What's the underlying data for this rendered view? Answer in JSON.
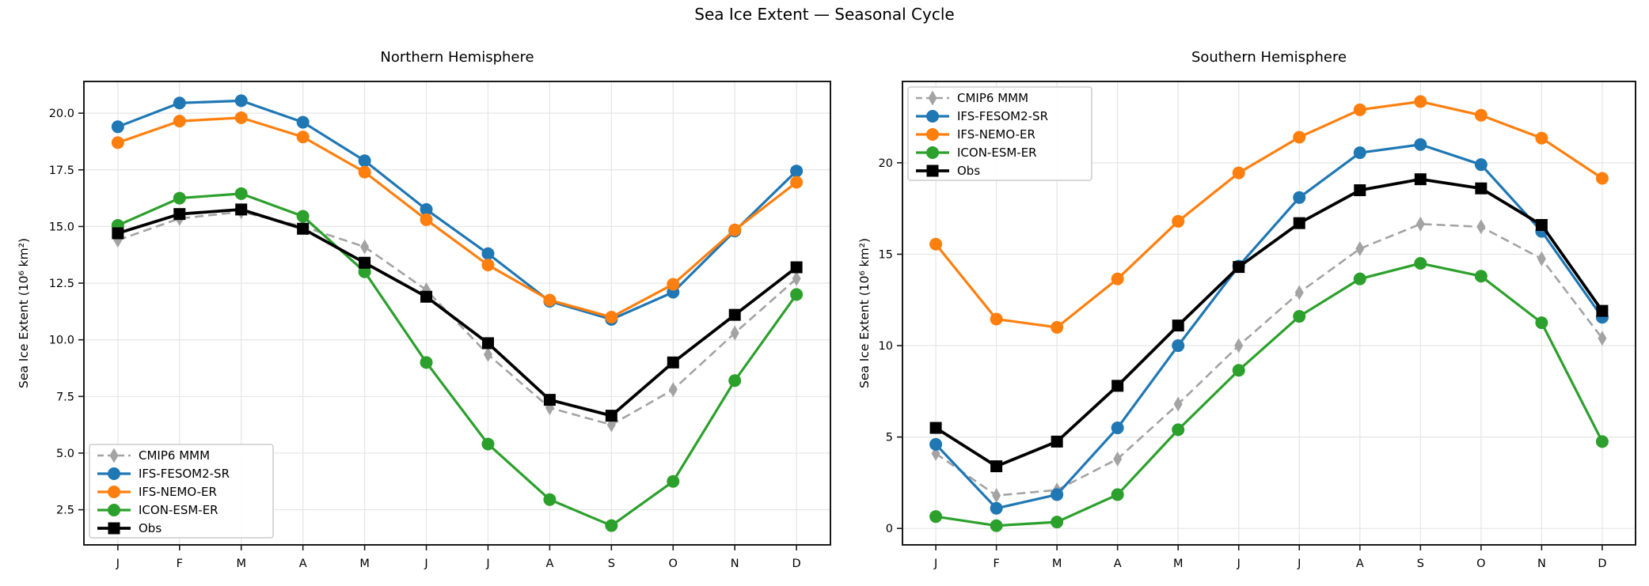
{
  "figure": {
    "suptitle": "Sea Ice Extent — Seasonal Cycle",
    "background": "#ffffff",
    "text_color": "#000000",
    "grid_color": "#e5e5e5",
    "spine_color": "#1a1a1a",
    "legend_border_color": "#cccccc",
    "legend_background": "#ffffff"
  },
  "chart_data": [
    {
      "id": "northern-hemisphere",
      "type": "line",
      "title": "Northern Hemisphere",
      "ylabel": "Sea Ice Extent (10⁶ km²)",
      "xlabel": "",
      "categories": [
        "J",
        "F",
        "M",
        "A",
        "M",
        "J",
        "J",
        "A",
        "S",
        "O",
        "N",
        "D"
      ],
      "xlim": [
        -0.55,
        11.55
      ],
      "ylim": [
        0.95,
        21.4
      ],
      "yticks": [
        2.5,
        5.0,
        7.5,
        10.0,
        12.5,
        15.0,
        17.5,
        20.0
      ],
      "ytick_labels": [
        "2.5",
        "5.0",
        "7.5",
        "10.0",
        "12.5",
        "15.0",
        "17.5",
        "20.0"
      ],
      "grid": true,
      "legend_loc": "lower-left",
      "legend_labels": [
        "CMIP6 MMM",
        "IFS-FESOM2-SR",
        "IFS-NEMO-ER",
        "ICON-ESM-ER",
        "Obs"
      ],
      "series": [
        {
          "name": "CMIP6 MMM",
          "color": "#a3a3a3",
          "dash": "dashed",
          "marker": "thin-diamond",
          "values": [
            14.4,
            15.35,
            15.65,
            15.0,
            14.1,
            12.2,
            9.35,
            7.0,
            6.25,
            7.8,
            10.3,
            12.7
          ]
        },
        {
          "name": "IFS-FESOM2-SR",
          "color": "#1f77b4",
          "dash": "solid",
          "marker": "circle",
          "values": [
            19.4,
            20.45,
            20.55,
            19.6,
            17.9,
            15.75,
            13.8,
            11.7,
            10.9,
            12.1,
            14.8,
            17.45
          ]
        },
        {
          "name": "IFS-NEMO-ER",
          "color": "#ff7f0e",
          "dash": "solid",
          "marker": "circle",
          "values": [
            18.7,
            19.65,
            19.8,
            18.95,
            17.4,
            15.3,
            13.3,
            11.75,
            11.0,
            12.45,
            14.85,
            16.95
          ]
        },
        {
          "name": "ICON-ESM-ER",
          "color": "#2ca02c",
          "dash": "solid",
          "marker": "circle",
          "values": [
            15.05,
            16.25,
            16.45,
            15.45,
            13.0,
            9.0,
            5.4,
            2.95,
            1.8,
            3.75,
            8.2,
            12.0
          ]
        },
        {
          "name": "Obs",
          "color": "#000000",
          "dash": "solid",
          "marker": "square",
          "values": [
            14.7,
            15.55,
            15.75,
            14.9,
            13.4,
            11.9,
            9.85,
            7.35,
            6.65,
            9.0,
            11.1,
            13.2
          ]
        }
      ]
    },
    {
      "id": "southern-hemisphere",
      "type": "line",
      "title": "Southern Hemisphere",
      "ylabel": "Sea Ice Extent (10⁶ km²)",
      "xlabel": "",
      "categories": [
        "J",
        "F",
        "M",
        "A",
        "M",
        "J",
        "J",
        "A",
        "S",
        "O",
        "N",
        "D"
      ],
      "xlim": [
        -0.55,
        11.55
      ],
      "ylim": [
        -0.9,
        24.45
      ],
      "yticks": [
        0,
        5,
        10,
        15,
        20
      ],
      "ytick_labels": [
        "0",
        "5",
        "10",
        "15",
        "20"
      ],
      "grid": true,
      "legend_loc": "upper-left",
      "legend_labels": [
        "CMIP6 MMM",
        "IFS-FESOM2-SR",
        "IFS-NEMO-ER",
        "ICON-ESM-ER",
        "Obs"
      ],
      "series": [
        {
          "name": "CMIP6 MMM",
          "color": "#a3a3a3",
          "dash": "dashed",
          "marker": "thin-diamond",
          "values": [
            4.1,
            1.8,
            2.1,
            3.8,
            6.8,
            10.0,
            12.9,
            15.3,
            16.65,
            16.5,
            14.75,
            10.4
          ]
        },
        {
          "name": "IFS-FESOM2-SR",
          "color": "#1f77b4",
          "dash": "solid",
          "marker": "circle",
          "values": [
            4.6,
            1.1,
            1.85,
            5.5,
            10.0,
            14.35,
            18.1,
            20.55,
            21.0,
            19.9,
            16.25,
            11.55
          ]
        },
        {
          "name": "IFS-NEMO-ER",
          "color": "#ff7f0e",
          "dash": "solid",
          "marker": "circle",
          "values": [
            15.55,
            11.45,
            11.0,
            13.65,
            16.8,
            19.45,
            21.4,
            22.9,
            23.35,
            22.6,
            21.35,
            19.15
          ]
        },
        {
          "name": "ICON-ESM-ER",
          "color": "#2ca02c",
          "dash": "solid",
          "marker": "circle",
          "values": [
            0.65,
            0.15,
            0.35,
            1.85,
            5.4,
            8.65,
            11.6,
            13.65,
            14.5,
            13.8,
            11.25,
            4.75
          ]
        },
        {
          "name": "Obs",
          "color": "#000000",
          "dash": "solid",
          "marker": "square",
          "values": [
            5.5,
            3.4,
            4.75,
            7.8,
            11.1,
            14.3,
            16.7,
            18.5,
            19.1,
            18.6,
            16.6,
            11.9
          ]
        }
      ]
    }
  ]
}
